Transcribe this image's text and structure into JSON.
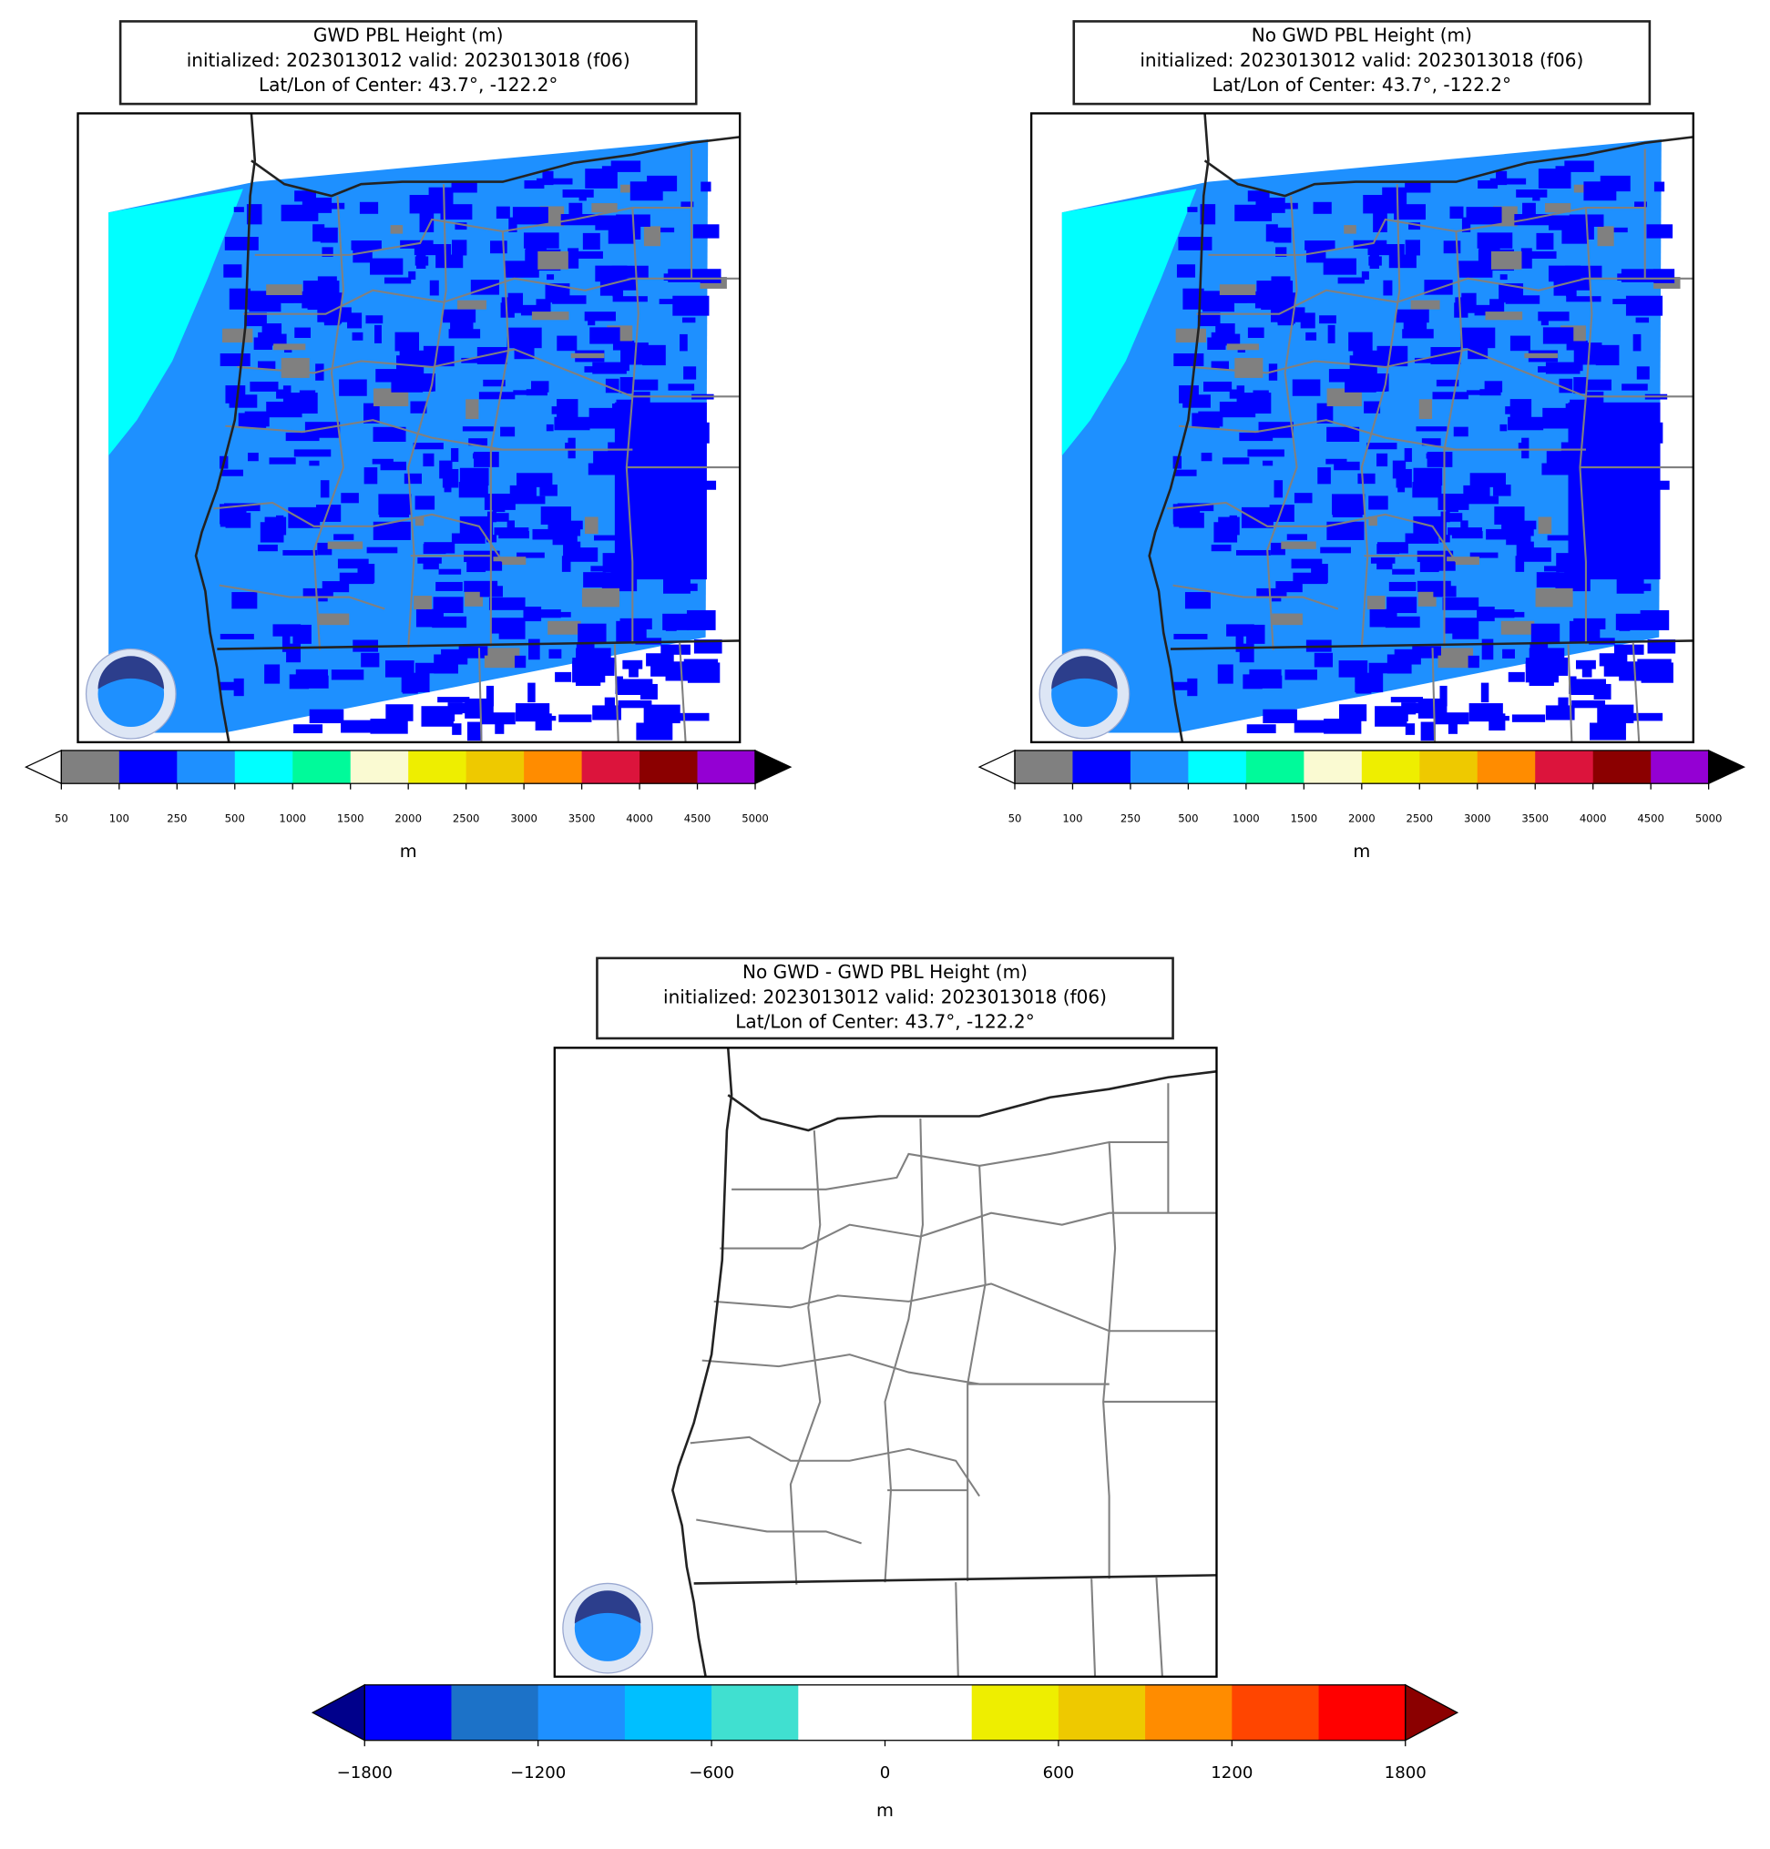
{
  "panels": [
    {
      "title": [
        "GWD PBL Height (m)",
        "initialized: 2023013012 valid: 2023013018 (f06)",
        "Lat/Lon of Center: 43.7°, -122.2°"
      ],
      "field": true,
      "colorbar": {
        "ticks": [
          50,
          100,
          250,
          500,
          1000,
          1500,
          2000,
          2500,
          3000,
          3500,
          4000,
          4500,
          5000
        ],
        "colors": [
          "#808080",
          "#0000ff",
          "#1e90ff",
          "#00ffff",
          "#00fa9a",
          "#fafad2",
          "#eeee00",
          "#eec900",
          "#ff8c00",
          "#dc143c",
          "#8b0000",
          "#9400d3"
        ],
        "under_color": "#ffffff",
        "over_color": "#000000",
        "label": "m"
      }
    },
    {
      "title": [
        "No GWD PBL Height (m)",
        "initialized: 2023013012 valid: 2023013018 (f06)",
        "Lat/Lon of Center: 43.7°, -122.2°"
      ],
      "field": true,
      "colorbar": {
        "ticks": [
          50,
          100,
          250,
          500,
          1000,
          1500,
          2000,
          2500,
          3000,
          3500,
          4000,
          4500,
          5000
        ],
        "colors": [
          "#808080",
          "#0000ff",
          "#1e90ff",
          "#00ffff",
          "#00fa9a",
          "#fafad2",
          "#eeee00",
          "#eec900",
          "#ff8c00",
          "#dc143c",
          "#8b0000",
          "#9400d3"
        ],
        "under_color": "#ffffff",
        "over_color": "#000000",
        "label": "m"
      }
    },
    {
      "title": [
        "No GWD - GWD PBL Height (m)",
        "initialized: 2023013012 valid: 2023013018 (f06)",
        "Lat/Lon of Center: 43.7°, -122.2°"
      ],
      "field": false,
      "colorbar": {
        "lim": [
          -1800,
          1800
        ],
        "ticks": [
          {
            "value": -1800,
            "label": "−1800"
          },
          {
            "value": -1200,
            "label": "−1200"
          },
          {
            "value": -600,
            "label": "−600"
          },
          0,
          600,
          1200,
          1800
        ],
        "colors": [
          "#0000ff",
          "#1c72c8",
          "#1e90ff",
          "#00bfff",
          "#40e0d0",
          "#ffffff",
          "#ffffff",
          "#eeee00",
          "#eec900",
          "#ff8c00",
          "#ff4500",
          "#ff0000"
        ],
        "under_color": "#00008b",
        "over_color": "#8b0000",
        "label": "m"
      }
    }
  ]
}
